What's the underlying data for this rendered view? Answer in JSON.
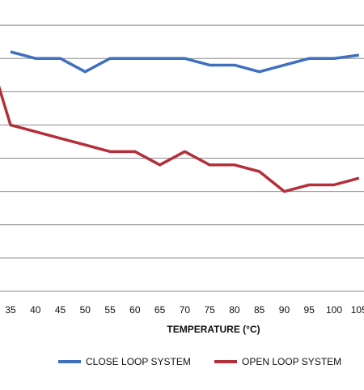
{
  "chart_data": {
    "type": "line",
    "xlabel": "TEMPERATURE (°C)",
    "ylabel": "",
    "title": "",
    "x": [
      35,
      40,
      45,
      50,
      55,
      60,
      65,
      70,
      75,
      80,
      85,
      90,
      95,
      100,
      105
    ],
    "tick_labels": [
      "35",
      "40",
      "45",
      "50",
      "55",
      "60",
      "65",
      "70",
      "75",
      "80",
      "85",
      "90",
      "95",
      "100",
      "105"
    ],
    "ylim": [
      0,
      9
    ],
    "grid": true,
    "legend_position": "bottom",
    "series": [
      {
        "name": "CLOSE LOOP SYSTEM",
        "color": "#3f6fbf",
        "values": [
          7.2,
          7.0,
          7.0,
          6.6,
          7.0,
          7.0,
          7.0,
          7.0,
          6.8,
          6.8,
          6.6,
          6.8,
          7.0,
          7.0,
          7.1
        ]
      },
      {
        "name": "OPEN LOOP SYSTEM",
        "color": "#b3303a",
        "values": [
          5.0,
          4.8,
          4.6,
          4.4,
          4.2,
          4.2,
          3.8,
          4.2,
          3.8,
          3.8,
          3.6,
          3.0,
          3.2,
          3.2,
          3.4
        ]
      }
    ]
  }
}
